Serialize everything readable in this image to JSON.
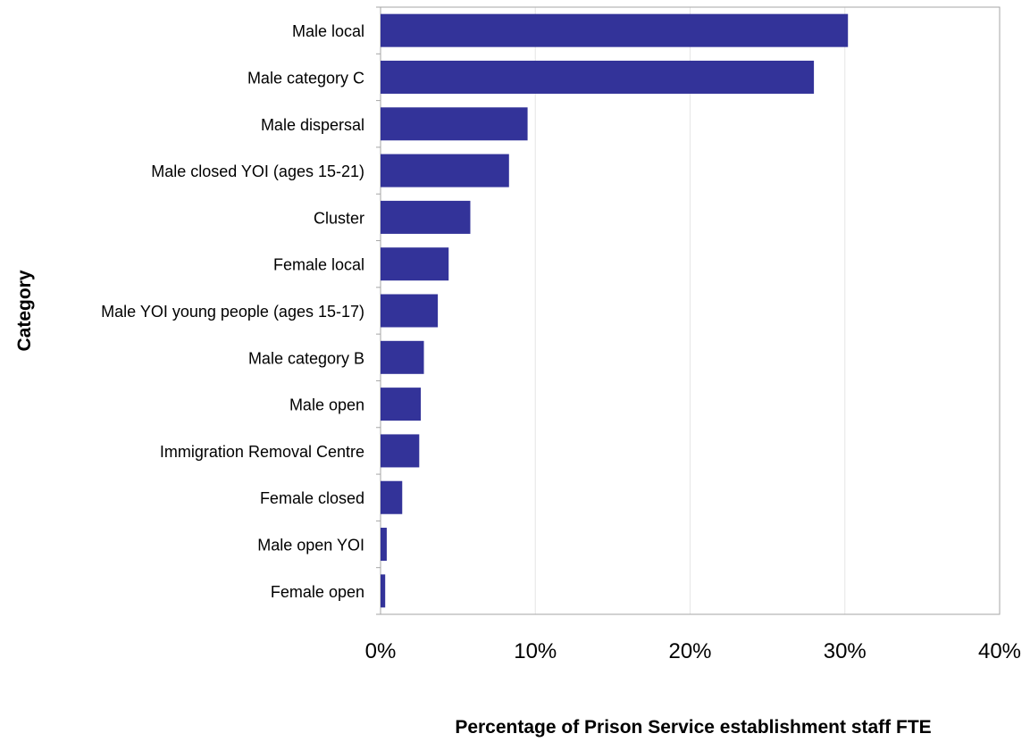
{
  "chart_data": {
    "type": "bar",
    "orientation": "horizontal",
    "categories": [
      "Male local",
      "Male category C",
      "Male dispersal",
      "Male closed YOI (ages 15-21)",
      "Cluster",
      "Female local",
      "Male YOI young people (ages 15-17)",
      "Male category B",
      "Male open",
      "Immigration Removal Centre",
      "Female closed",
      "Male open YOI",
      "Female open"
    ],
    "values": [
      30.2,
      28.0,
      9.5,
      8.3,
      5.8,
      4.4,
      3.7,
      2.8,
      2.6,
      2.5,
      1.4,
      0.4,
      0.3
    ],
    "xlim": [
      0,
      40
    ],
    "xticks": [
      "0%",
      "10%",
      "20%",
      "30%",
      "40%"
    ],
    "xlabel": "Percentage of Prison Service establishment staff FTE",
    "ylabel": "Category",
    "grid": "vertical",
    "bar_color": "#333399",
    "gridline_color": "#e6e6e6",
    "axis_color": "#a6a6a6"
  }
}
